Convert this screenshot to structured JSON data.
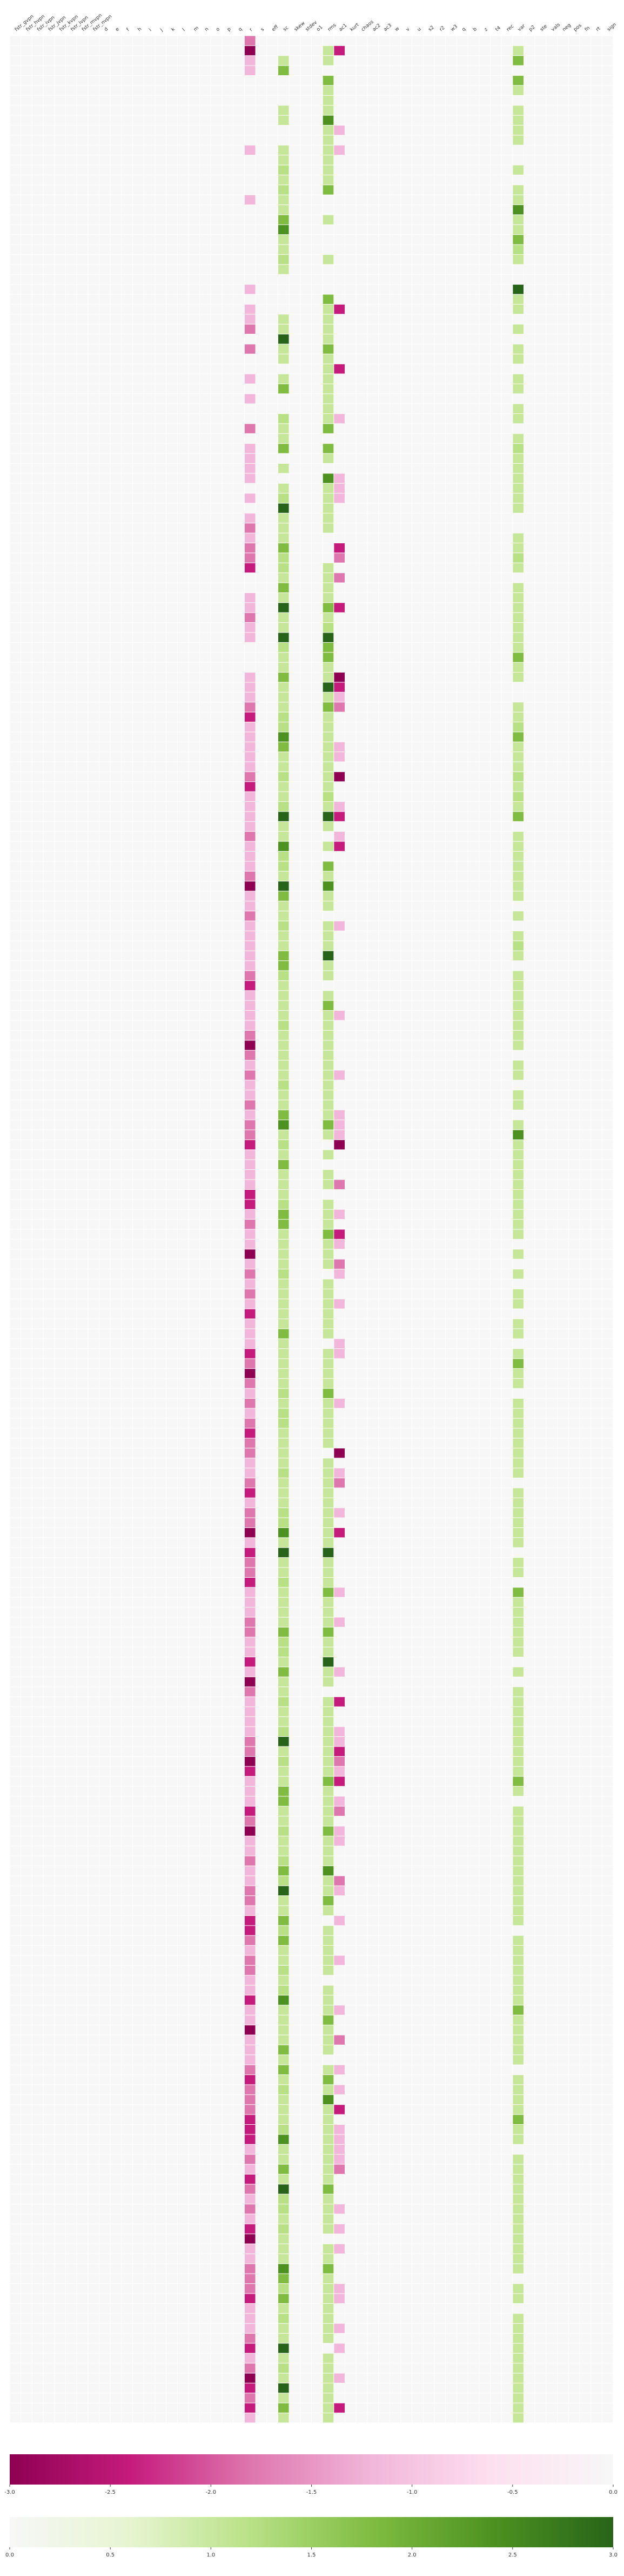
{
  "chart_data": {
    "type": "heatmap",
    "columns": [
      "fstr_gvpn",
      "fstr_hvpn",
      "fstr_ivpn",
      "fstr_jvpn",
      "fstr_kvpn",
      "fstr_lvpn",
      "fstr_mvpn",
      "fstr_nvpn",
      "d",
      "e",
      "f",
      "h",
      "i",
      "j",
      "k",
      "l",
      "m",
      "n",
      "o",
      "p",
      "q",
      "r",
      "s",
      "eff",
      "sc",
      "skew",
      "stdev",
      "o1",
      "rms",
      "ac1",
      "kurt",
      "chaos",
      "ac2",
      "ac3",
      "w",
      "v",
      "u",
      "s2",
      "r2",
      "w3",
      "q",
      "b",
      "z",
      "t4",
      "rec",
      "var",
      "p2",
      "ste",
      "vals",
      "neg",
      "pos",
      "fn",
      "rt",
      "sign"
    ],
    "row_count": 240,
    "colorbars": [
      {
        "name": "negative",
        "min": -3.0,
        "max": 0.0,
        "ticks": [
          "-3.0",
          "-2.5",
          "-2.0",
          "-1.5",
          "-1.0",
          "-0.5",
          "0.0"
        ],
        "colors": [
          "#8e0152",
          "#c51b7d",
          "#de77ae",
          "#f1b6da",
          "#fde0ef",
          "#f7f7f7"
        ]
      },
      {
        "name": "positive",
        "min": 0.0,
        "max": 3.0,
        "ticks": [
          "0.0",
          "0.5",
          "1.0",
          "1.5",
          "2.0",
          "2.5",
          "3.0"
        ],
        "colors": [
          "#f7f7f7",
          "#e6f5d0",
          "#b8e186",
          "#7fbc41",
          "#4d9221",
          "#276419"
        ]
      }
    ],
    "grid": true,
    "series": [
      {
        "column": 21,
        "sign": "negative",
        "levels": [
          2,
          4,
          1,
          1,
          0,
          0,
          0,
          0,
          0,
          0,
          0,
          1,
          0,
          0,
          0,
          0,
          1,
          0,
          0,
          0,
          0,
          0,
          0,
          0,
          0,
          1,
          0,
          1,
          1,
          2,
          0,
          2,
          0,
          0,
          1,
          0,
          1,
          0,
          0,
          2,
          0,
          1,
          1,
          1,
          1,
          0,
          1,
          0,
          1,
          2,
          1,
          2,
          2,
          3,
          0,
          0,
          1,
          1,
          2,
          1,
          1,
          0,
          0,
          0,
          1,
          1,
          1,
          2,
          3,
          1,
          1,
          1,
          1,
          1,
          2,
          3,
          1,
          1,
          1,
          1,
          2,
          1,
          1,
          1,
          2,
          4,
          1,
          1,
          2,
          1,
          1,
          1,
          1,
          1,
          2,
          3,
          1,
          1,
          1,
          1,
          2,
          4,
          2,
          1,
          2,
          1,
          1,
          2,
          1,
          2,
          2,
          3,
          1,
          1,
          1,
          1,
          3,
          3,
          1,
          2,
          1,
          1,
          4,
          1,
          2,
          1,
          2,
          1,
          3,
          1,
          1,
          1,
          3,
          2,
          4,
          2,
          1,
          2,
          1,
          2,
          3,
          2,
          2,
          1,
          1,
          2,
          3,
          1,
          2,
          2,
          4,
          1,
          3,
          2,
          2,
          3,
          1,
          1,
          1,
          2,
          2,
          1,
          1,
          3,
          1,
          4,
          2,
          1,
          1,
          1,
          1,
          2,
          2,
          4,
          3,
          1,
          1,
          1,
          3,
          2,
          4,
          1,
          1,
          2,
          1,
          1,
          2,
          2,
          1,
          3,
          3,
          2,
          1,
          2,
          2,
          1,
          1,
          3,
          1,
          1,
          4,
          1,
          1,
          1,
          2,
          3,
          2,
          2,
          2,
          3,
          3,
          3,
          1,
          2,
          1,
          3,
          2,
          1,
          2,
          1,
          3,
          4,
          1,
          1,
          2,
          2,
          2,
          3,
          1,
          1,
          1,
          2,
          3,
          1,
          2,
          4,
          3,
          2,
          3,
          1
        ]
      },
      {
        "column": 24,
        "sign": "positive",
        "levels": [
          0,
          0,
          1,
          3,
          0,
          0,
          0,
          1,
          1,
          0,
          0,
          1,
          1,
          2,
          1,
          2,
          1,
          1,
          3,
          4,
          1,
          1,
          2,
          1,
          0,
          0,
          0,
          0,
          1,
          1,
          5,
          1,
          1,
          0,
          1,
          3,
          0,
          0,
          2,
          1,
          1,
          3,
          0,
          1,
          0,
          1,
          2,
          5,
          1,
          1,
          1,
          3,
          2,
          2,
          1,
          3,
          1,
          5,
          1,
          1,
          5,
          2,
          1,
          1,
          3,
          1,
          1,
          1,
          2,
          2,
          4,
          3,
          1,
          1,
          2,
          1,
          1,
          2,
          5,
          1,
          1,
          4,
          2,
          2,
          1,
          5,
          3,
          1,
          1,
          2,
          1,
          1,
          3,
          3,
          2,
          1,
          1,
          1,
          1,
          2,
          1,
          1,
          1,
          1,
          1,
          2,
          1,
          1,
          3,
          4,
          1,
          2,
          1,
          3,
          1,
          1,
          1,
          2,
          3,
          3,
          1,
          1,
          1,
          1,
          2,
          1,
          1,
          1,
          1,
          1,
          3,
          1,
          1,
          1,
          1,
          1,
          2,
          1,
          2,
          2,
          1,
          1,
          1,
          1,
          2,
          1,
          1,
          1,
          2,
          2,
          4,
          1,
          5,
          1,
          1,
          2,
          1,
          1,
          1,
          1,
          3,
          2,
          2,
          1,
          3,
          1,
          1,
          2,
          1,
          1,
          2,
          5,
          1,
          2,
          1,
          1,
          3,
          3,
          1,
          1,
          2,
          1,
          1,
          2,
          3,
          2,
          5,
          1,
          1,
          3,
          2,
          3,
          1,
          1,
          2,
          1,
          2,
          4,
          1,
          1,
          1,
          1,
          3,
          1,
          3,
          1,
          2,
          1,
          1,
          1,
          2,
          4,
          1,
          1,
          3,
          1,
          5,
          2,
          2,
          1,
          2,
          1,
          1,
          1,
          4,
          3,
          2,
          3,
          1,
          2,
          1,
          1,
          5,
          1,
          2,
          1,
          5,
          1,
          3,
          1
        ]
      },
      {
        "column": 28,
        "sign": "positive",
        "levels": [
          0,
          1,
          1,
          0,
          3,
          1,
          1,
          1,
          4,
          1,
          1,
          1,
          1,
          1,
          1,
          3,
          0,
          0,
          1,
          0,
          0,
          0,
          1,
          0,
          0,
          0,
          3,
          1,
          1,
          1,
          1,
          3,
          1,
          1,
          1,
          1,
          1,
          1,
          1,
          3,
          0,
          3,
          1,
          0,
          4,
          1,
          1,
          1,
          1,
          1,
          0,
          0,
          0,
          1,
          1,
          1,
          1,
          3,
          1,
          2,
          5,
          3,
          3,
          1,
          1,
          5,
          1,
          3,
          1,
          1,
          1,
          1,
          1,
          1,
          1,
          1,
          2,
          1,
          5,
          1,
          0,
          1,
          0,
          3,
          1,
          4,
          1,
          1,
          0,
          1,
          1,
          1,
          5,
          1,
          1,
          0,
          1,
          3,
          1,
          1,
          1,
          1,
          1,
          1,
          1,
          1,
          1,
          1,
          1,
          3,
          1,
          0,
          1,
          0,
          1,
          1,
          0,
          1,
          1,
          1,
          3,
          1,
          1,
          1,
          0,
          1,
          1,
          1,
          1,
          1,
          1,
          0,
          1,
          1,
          1,
          1,
          3,
          1,
          1,
          1,
          1,
          1,
          0,
          1,
          1,
          1,
          1,
          1,
          1,
          1,
          1,
          1,
          5,
          1,
          1,
          1,
          3,
          1,
          1,
          1,
          3,
          1,
          1,
          5,
          1,
          1,
          0,
          1,
          1,
          1,
          1,
          1,
          1,
          1,
          1,
          3,
          1,
          1,
          1,
          1,
          3,
          1,
          1,
          1,
          4,
          1,
          1,
          3,
          1,
          0,
          1,
          1,
          1,
          1,
          1,
          0,
          1,
          1,
          1,
          3,
          1,
          1,
          1,
          0,
          1,
          3,
          1,
          4,
          1,
          1,
          1,
          1,
          1,
          1,
          1,
          1,
          3,
          1,
          1,
          1,
          1,
          0,
          1,
          1,
          3,
          1,
          1,
          1,
          1,
          1,
          1,
          1,
          0,
          1,
          1,
          1,
          1,
          1,
          1,
          1
        ]
      },
      {
        "column": 29,
        "sign": "negative",
        "levels": [
          0,
          3,
          0,
          0,
          0,
          0,
          0,
          0,
          0,
          1,
          0,
          1,
          0,
          0,
          0,
          0,
          0,
          0,
          0,
          0,
          0,
          0,
          0,
          0,
          0,
          0,
          0,
          3,
          0,
          0,
          0,
          0,
          0,
          3,
          0,
          0,
          0,
          0,
          1,
          0,
          0,
          0,
          0,
          0,
          1,
          1,
          1,
          0,
          0,
          0,
          0,
          3,
          2,
          0,
          2,
          0,
          0,
          3,
          0,
          0,
          0,
          0,
          0,
          0,
          4,
          3,
          1,
          2,
          0,
          0,
          0,
          1,
          1,
          0,
          4,
          0,
          0,
          1,
          3,
          0,
          1,
          3,
          0,
          0,
          0,
          0,
          0,
          0,
          0,
          1,
          0,
          0,
          0,
          0,
          0,
          0,
          0,
          0,
          1,
          0,
          0,
          0,
          0,
          0,
          1,
          0,
          0,
          0,
          1,
          1,
          1,
          4,
          0,
          0,
          0,
          2,
          0,
          0,
          1,
          0,
          3,
          1,
          0,
          2,
          1,
          0,
          0,
          1,
          0,
          0,
          0,
          1,
          1,
          0,
          0,
          0,
          0,
          1,
          0,
          0,
          0,
          0,
          4,
          0,
          1,
          2,
          0,
          0,
          1,
          0,
          3,
          0,
          0,
          0,
          0,
          0,
          1,
          0,
          0,
          1,
          0,
          0,
          0,
          0,
          1,
          0,
          0,
          3,
          0,
          0,
          1,
          1,
          3,
          2,
          1,
          3,
          0,
          1,
          2,
          0,
          1,
          1,
          0,
          0,
          0,
          2,
          1,
          0,
          0,
          1,
          0,
          0,
          0,
          1,
          0,
          0,
          0,
          0,
          1,
          0,
          0,
          2,
          0,
          0,
          1,
          0,
          1,
          0,
          3,
          0,
          1,
          1,
          1,
          1,
          2,
          0,
          0,
          0,
          1,
          0,
          1,
          0,
          1,
          0,
          0,
          0,
          1,
          1,
          0,
          0,
          1,
          0,
          1,
          0,
          0,
          1,
          0,
          0,
          3,
          0
        ]
      },
      {
        "column": 45,
        "sign": "positive",
        "levels": [
          0,
          1,
          3,
          0,
          3,
          1,
          0,
          1,
          1,
          1,
          1,
          0,
          0,
          1,
          0,
          1,
          1,
          4,
          1,
          1,
          3,
          2,
          1,
          0,
          0,
          5,
          1,
          1,
          0,
          1,
          0,
          1,
          1,
          0,
          1,
          1,
          0,
          1,
          1,
          0,
          1,
          2,
          1,
          1,
          1,
          1,
          1,
          1,
          0,
          0,
          1,
          1,
          2,
          1,
          0,
          1,
          1,
          1,
          1,
          1,
          1,
          1,
          3,
          1,
          1,
          0,
          0,
          1,
          1,
          2,
          3,
          1,
          1,
          1,
          2,
          1,
          2,
          1,
          3,
          0,
          1,
          1,
          1,
          1,
          1,
          1,
          1,
          0,
          1,
          0,
          1,
          2,
          1,
          0,
          1,
          1,
          1,
          1,
          1,
          1,
          1,
          1,
          0,
          1,
          1,
          0,
          1,
          1,
          0,
          1,
          4,
          1,
          1,
          1,
          1,
          1,
          1,
          1,
          1,
          1,
          1,
          0,
          1,
          0,
          1,
          0,
          1,
          1,
          0,
          1,
          1,
          0,
          1,
          3,
          1,
          1,
          0,
          1,
          1,
          1,
          1,
          1,
          1,
          1,
          1,
          0,
          1,
          1,
          1,
          1,
          1,
          1,
          0,
          1,
          1,
          0,
          3,
          1,
          1,
          1,
          1,
          1,
          1,
          0,
          1,
          0,
          1,
          1,
          1,
          1,
          1,
          1,
          1,
          1,
          1,
          3,
          1,
          0,
          1,
          1,
          1,
          1,
          1,
          1,
          1,
          1,
          1,
          1,
          1,
          1,
          0,
          1,
          1,
          1,
          1,
          1,
          1,
          1,
          3,
          1,
          1,
          1,
          1,
          1,
          0,
          1,
          1,
          1,
          1,
          3,
          1,
          1,
          0,
          1,
          1,
          1,
          1,
          1,
          1,
          1,
          1,
          1,
          1,
          1,
          1,
          0,
          1,
          1,
          0,
          1,
          1,
          1,
          1,
          1,
          1,
          1,
          1,
          1,
          1,
          1
        ]
      }
    ]
  }
}
